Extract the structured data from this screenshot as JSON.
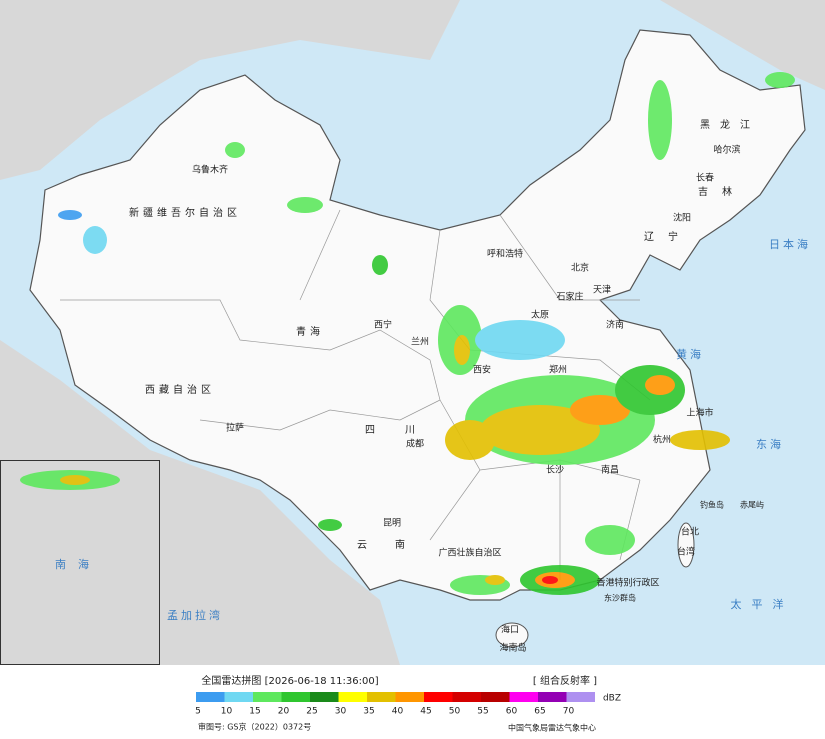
{
  "header": {
    "title": "全国雷达拼图 [2026-06-18 11:36:00]",
    "product": "[ 组合反射率 ]"
  },
  "legend": {
    "unit": "dBZ",
    "items": [
      {
        "value": 5,
        "color": "#3c9cf0"
      },
      {
        "value": 10,
        "color": "#6fd8f2"
      },
      {
        "value": 15,
        "color": "#5ee85e"
      },
      {
        "value": 20,
        "color": "#2fc62f"
      },
      {
        "value": 25,
        "color": "#1a8a1a"
      },
      {
        "value": 30,
        "color": "#ffff00"
      },
      {
        "value": 35,
        "color": "#e3c000"
      },
      {
        "value": 40,
        "color": "#ff9600"
      },
      {
        "value": 45,
        "color": "#ff0000"
      },
      {
        "value": 50,
        "color": "#d40000"
      },
      {
        "value": 55,
        "color": "#b80000"
      },
      {
        "value": 60,
        "color": "#ff00f0"
      },
      {
        "value": 65,
        "color": "#9400b4"
      },
      {
        "value": 70,
        "color": "#ae90f0"
      }
    ]
  },
  "footer": {
    "approval": "审图号: GS京（2022）0372号",
    "source": "中国气象局雷达气象中心"
  },
  "places": [
    "乌鲁木齐",
    "新疆维吾尔自治区",
    "西藏自治区",
    "青海",
    "拉萨",
    "西宁",
    "兰州",
    "成都",
    "四川",
    "昆明",
    "云南",
    "呼和浩特",
    "北京",
    "天津",
    "石家庄",
    "太原",
    "济南",
    "郑州",
    "西安",
    "上海市",
    "杭州",
    "南昌",
    "长沙",
    "台北",
    "台湾",
    "海口",
    "海南岛",
    "哈尔滨",
    "长春",
    "沈阳",
    "黑龙江",
    "吉林",
    "辽宁",
    "日本海",
    "黄海",
    "东海",
    "太平洋",
    "孟加拉湾",
    "南海",
    "钓鱼岛",
    "赤尾屿",
    "东沙群岛",
    "广西壮族自治区",
    "香港特别行政区"
  ]
}
